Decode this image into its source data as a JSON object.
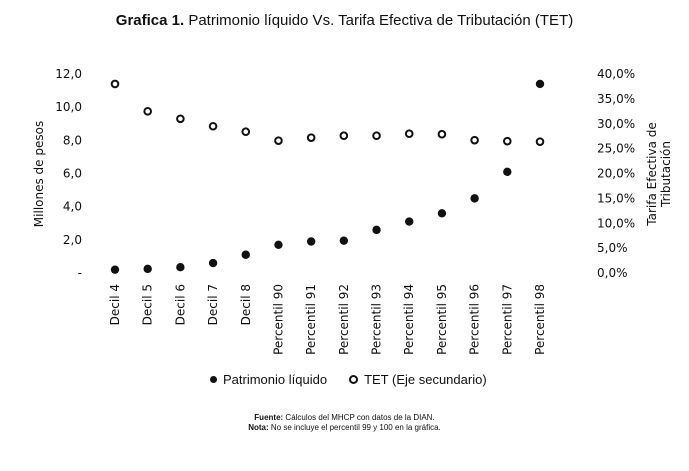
{
  "title": {
    "bold": "Grafica 1.",
    "rest": "Patrimonio líquido Vs. Tarifa Efectiva de Tributación (TET)"
  },
  "legend": {
    "primary": "Patrimonio líquido",
    "secondary": "TET (Eje secundario)"
  },
  "footer": {
    "fuente_label": "Fuente:",
    "fuente_text": "Cálculos del MHCP con datos de la DIAN.",
    "nota_label": "Nota:",
    "nota_text": "No se incluye el percentil 99 y 100 en la gráfica."
  },
  "chart_data": {
    "type": "scatter",
    "title": "Grafica 1. Patrimonio líquido Vs. Tarifa Efectiva de Tributación (TET)",
    "categories": [
      "Decil 4",
      "Decil 5",
      "Decil 6",
      "Decil 7",
      "Decil 8",
      "Percentil 90",
      "Percentil 91",
      "Percentil 92",
      "Percentil 93",
      "Percentil 94",
      "Percentil 95",
      "Percentil 96",
      "Percentil 97",
      "Percentil 98"
    ],
    "ylabel": "Millones de pesos",
    "y2label_line1": "Tarifa Efectiva de",
    "y2label_line2": "Tributación",
    "ylim": [
      0,
      12
    ],
    "y2lim": [
      0,
      40
    ],
    "yticks": [
      "-",
      "2,0",
      "4,0",
      "6,0",
      "8,0",
      "10,0",
      "12,0"
    ],
    "y2ticks": [
      "0,0%",
      "5,0%",
      "10,0%",
      "15,0%",
      "20,0%",
      "25,0%",
      "30,0%",
      "35,0%",
      "40,0%"
    ],
    "series": [
      {
        "name": "Patrimonio líquido",
        "axis": "primary",
        "marker": "filled",
        "values": [
          0.2,
          0.25,
          0.35,
          0.6,
          1.1,
          1.7,
          1.9,
          1.95,
          2.6,
          3.1,
          3.6,
          4.5,
          6.1,
          11.4
        ]
      },
      {
        "name": "TET (Eje secundario)",
        "axis": "secondary",
        "marker": "hollow",
        "values": [
          38.0,
          32.5,
          31.0,
          29.5,
          28.4,
          26.6,
          27.2,
          27.6,
          27.6,
          28.0,
          27.9,
          26.7,
          26.5,
          26.4
        ]
      }
    ],
    "grid": false,
    "legend_position": "bottom"
  }
}
